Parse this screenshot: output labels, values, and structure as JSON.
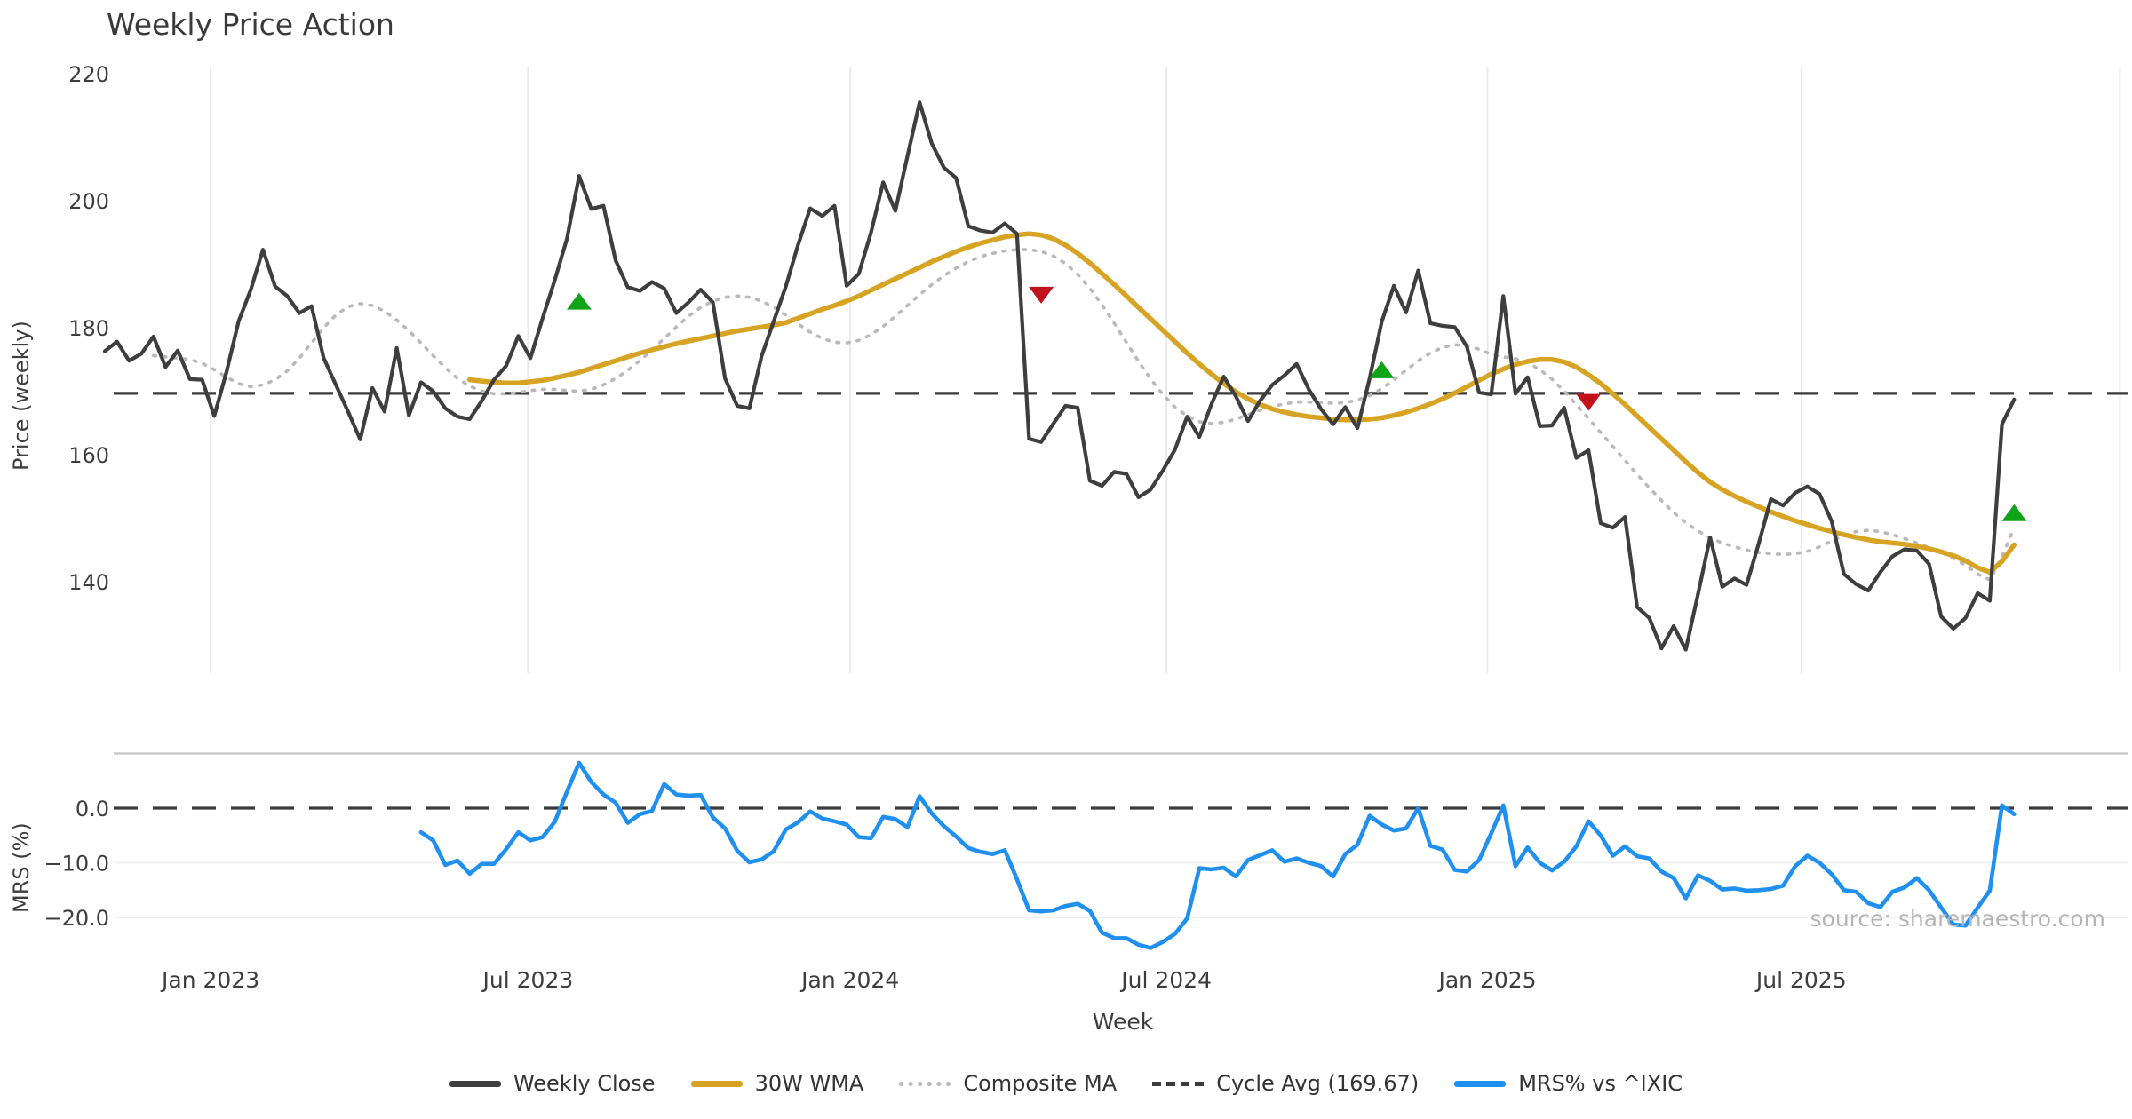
{
  "title": "Weekly Price Action",
  "source_note": "source: sharemaestro.com",
  "xlabel": "Week",
  "price_axis": {
    "label": "Price (weekly)",
    "ticks": [
      220,
      200,
      180,
      160,
      140
    ]
  },
  "mrs_axis": {
    "label": "MRS (%)",
    "ticks": [
      {
        "value": 0,
        "label": "0.0"
      },
      {
        "value": -10,
        "label": "−10.0"
      },
      {
        "value": -20,
        "label": "−20.0"
      }
    ]
  },
  "x_ticks": [
    {
      "week": 8.7,
      "label": "Jan 2023"
    },
    {
      "week": 34.8,
      "label": "Jul 2023"
    },
    {
      "week": 61.3,
      "label": "Jan 2024"
    },
    {
      "week": 87.3,
      "label": "Jul 2024"
    },
    {
      "week": 113.7,
      "label": "Jan 2025"
    },
    {
      "week": 139.5,
      "label": "Jul 2025"
    },
    {
      "week": 165.7,
      "label": ""
    }
  ],
  "colors": {
    "close": "#3e3e3e",
    "wma": "#d7a322",
    "composite": "#b9b9b9",
    "cycle": "#3b3b3b",
    "mrs": "#2090f0",
    "buy": "#0fa318",
    "sell": "#c2131c",
    "grid_v": "#eaeaea",
    "grid_h": "#f0f0f0",
    "panel_border": "#cbcbcb",
    "tick_text": "#3d3d3d"
  },
  "legend": [
    {
      "label": "Weekly Close",
      "swatch": "solid",
      "color": "#3e3e3e"
    },
    {
      "label": "30W WMA",
      "swatch": "solid",
      "color": "#d7a322"
    },
    {
      "label": "Composite MA",
      "swatch": "dotted",
      "color": "#b9b9b9"
    },
    {
      "label": "Cycle Avg (169.67)",
      "swatch": "dashed",
      "color": "#3b3b3b"
    },
    {
      "label": "MRS% vs ^IXIC",
      "swatch": "solid",
      "color": "#2090f0"
    }
  ],
  "chart_data": [
    {
      "type": "line",
      "title": "Weekly Price Action",
      "xlabel": "Week",
      "ylabel": "Price (weekly)",
      "ylim": [
        126,
        222
      ],
      "grid": "vertical",
      "cycle_avg": 169.67,
      "series": [
        {
          "name": "Weekly Close",
          "start_week": 0,
          "values": [
            176.3,
            177.8,
            174.8,
            175.9,
            178.6,
            173.8,
            176.4,
            171.9,
            171.8,
            166.1,
            173.0,
            181.0,
            186.0,
            192.3,
            186.5,
            185.0,
            182.3,
            183.4,
            175.2,
            171.0,
            166.8,
            162.4,
            170.5,
            166.8,
            176.8,
            166.2,
            171.4,
            170.0,
            167.3,
            166.0,
            165.6,
            168.5,
            171.8,
            174.0,
            178.7,
            175.2,
            181.5,
            187.5,
            194.0,
            203.9,
            198.7,
            199.2,
            190.6,
            186.4,
            185.8,
            187.2,
            186.2,
            182.3,
            184.0,
            186.0,
            184.0,
            172.0,
            167.7,
            167.3,
            175.5,
            181.0,
            186.5,
            193.0,
            198.8,
            197.6,
            199.2,
            186.6,
            188.5,
            195.0,
            202.9,
            198.4,
            207.0,
            215.5,
            209.0,
            205.2,
            203.6,
            196.0,
            195.3,
            195.0,
            196.4,
            194.8,
            162.5,
            162.0,
            164.9,
            167.7,
            167.4,
            155.9,
            155.1,
            157.3,
            157.0,
            153.3,
            154.5,
            157.5,
            160.8,
            166.0,
            162.8,
            168.0,
            172.3,
            169.2,
            165.3,
            168.5,
            171.0,
            172.5,
            174.3,
            170.3,
            167.2,
            164.8,
            167.5,
            164.2,
            172.0,
            181.0,
            186.6,
            182.4,
            189.0,
            180.7,
            180.3,
            180.1,
            177.0,
            169.8,
            169.5,
            185.0,
            169.6,
            172.2,
            164.5,
            164.6,
            167.4,
            159.5,
            160.7,
            149.2,
            148.5,
            150.2,
            136.0,
            134.3,
            129.5,
            133.0,
            129.3,
            138.0,
            147.0,
            139.2,
            140.5,
            139.5,
            146.0,
            153.0,
            152.0,
            154.0,
            155.0,
            153.8,
            149.5,
            141.2,
            139.6,
            138.6,
            141.5,
            144.0,
            145.1,
            144.9,
            142.8,
            134.5,
            132.6,
            134.3,
            138.2,
            137.0,
            164.8,
            168.7
          ]
        },
        {
          "name": "30W WMA",
          "start_week": 30,
          "values": [
            171.8,
            171.6,
            171.4,
            171.3,
            171.3,
            171.5,
            171.7,
            172.1,
            172.5,
            173.0,
            173.6,
            174.2,
            174.8,
            175.4,
            176.0,
            176.5,
            177.0,
            177.5,
            177.9,
            178.3,
            178.7,
            179.1,
            179.5,
            179.8,
            180.1,
            180.4,
            180.8,
            181.5,
            182.2,
            182.9,
            183.5,
            184.2,
            185.0,
            185.9,
            186.8,
            187.7,
            188.6,
            189.5,
            190.4,
            191.2,
            192.0,
            192.7,
            193.3,
            193.8,
            194.3,
            194.6,
            194.8,
            194.6,
            194.0,
            193.0,
            191.7,
            190.2,
            188.5,
            186.8,
            185.0,
            183.2,
            181.4,
            179.6,
            177.8,
            176.0,
            174.3,
            172.7,
            171.2,
            169.9,
            168.8,
            167.9,
            167.2,
            166.7,
            166.3,
            166.0,
            165.8,
            165.6,
            165.5,
            165.5,
            165.6,
            165.8,
            166.2,
            166.7,
            167.3,
            168.0,
            168.8,
            169.7,
            170.7,
            171.7,
            172.7,
            173.5,
            174.2,
            174.7,
            175.0,
            175.0,
            174.6,
            173.8,
            172.6,
            171.2,
            169.6,
            167.9,
            166.1,
            164.3,
            162.5,
            160.7,
            158.9,
            157.2,
            155.7,
            154.5,
            153.5,
            152.6,
            151.8,
            151.0,
            150.3,
            149.6,
            149.0,
            148.4,
            147.9,
            147.4,
            147.0,
            146.6,
            146.3,
            146.1,
            145.9,
            145.6,
            145.2,
            144.7,
            144.1,
            143.3,
            142.2,
            141.5,
            143.2,
            145.8
          ]
        },
        {
          "name": "Composite MA",
          "start_week": 4,
          "values": [
            175.6,
            175.4,
            175.2,
            175.0,
            174.4,
            173.4,
            172.2,
            171.2,
            170.7,
            171.0,
            171.8,
            173.2,
            175.2,
            177.6,
            180.0,
            182.0,
            183.3,
            183.8,
            183.5,
            182.6,
            181.2,
            179.5,
            177.6,
            175.6,
            173.7,
            172.0,
            170.8,
            170.0,
            169.6,
            169.6,
            169.8,
            170.1,
            170.3,
            170.3,
            170.1,
            170.0,
            170.3,
            171.0,
            172.0,
            173.3,
            174.8,
            176.5,
            178.3,
            180.1,
            181.8,
            183.2,
            184.2,
            184.8,
            185.0,
            184.8,
            184.2,
            183.2,
            182.0,
            180.6,
            179.3,
            178.3,
            177.7,
            177.6,
            178.0,
            178.9,
            180.2,
            181.8,
            183.5,
            185.2,
            186.8,
            188.2,
            189.4,
            190.4,
            191.2,
            191.7,
            192.1,
            192.3,
            192.3,
            192.0,
            191.3,
            190.1,
            188.4,
            186.2,
            183.6,
            180.7,
            177.7,
            174.7,
            171.9,
            169.5,
            167.5,
            166.1,
            165.2,
            164.9,
            165.1,
            165.6,
            166.3,
            167.0,
            167.6,
            168.0,
            168.3,
            168.3,
            168.2,
            168.1,
            168.2,
            168.6,
            169.3,
            170.4,
            171.8,
            173.3,
            174.8,
            176.0,
            176.9,
            177.3,
            177.2,
            176.6,
            175.8,
            175.4,
            175.1,
            174.5,
            173.4,
            171.9,
            170.0,
            167.9,
            165.7,
            163.5,
            161.3,
            159.1,
            156.9,
            154.8,
            152.8,
            150.9,
            149.3,
            148.0,
            146.9,
            146.1,
            145.5,
            145.0,
            144.6,
            144.4,
            144.3,
            144.4,
            144.8,
            145.5,
            146.4,
            147.3,
            147.9,
            148.1,
            147.9,
            147.4,
            146.8,
            146.1,
            145.4,
            144.6,
            143.7,
            142.6,
            141.2,
            140.3,
            144.0,
            148.5
          ]
        }
      ],
      "markers": {
        "buy_signals": [
          {
            "week": 39,
            "price": 184.1
          },
          {
            "week": 105,
            "price": 173.3
          },
          {
            "week": 157,
            "price": 150.8
          }
        ],
        "sell_signals": [
          {
            "week": 77,
            "price": 185.2
          },
          {
            "week": 122,
            "price": 168.3
          }
        ]
      }
    },
    {
      "type": "line",
      "ylabel": "MRS (%)",
      "ylim": [
        -27,
        10
      ],
      "grid": "horizontal",
      "zero_line": 0,
      "series": [
        {
          "name": "MRS% vs ^IXIC",
          "start_week": 26,
          "values": [
            -4.4,
            -5.9,
            -10.4,
            -9.6,
            -12.0,
            -10.2,
            -10.2,
            -7.5,
            -4.4,
            -5.9,
            -5.3,
            -2.5,
            3.0,
            8.3,
            4.8,
            2.5,
            1.0,
            -2.7,
            -1.1,
            -0.5,
            4.4,
            2.5,
            2.3,
            2.4,
            -1.7,
            -3.7,
            -7.8,
            -9.9,
            -9.4,
            -7.9,
            -3.9,
            -2.6,
            -0.6,
            -1.9,
            -2.4,
            -3.0,
            -5.3,
            -5.5,
            -1.6,
            -2.0,
            -3.5,
            2.2,
            -1.0,
            -3.3,
            -5.2,
            -7.3,
            -8.0,
            -8.4,
            -7.7,
            -13.0,
            -18.7,
            -18.9,
            -18.7,
            -17.9,
            -17.5,
            -18.8,
            -22.8,
            -23.8,
            -23.8,
            -25.0,
            -25.6,
            -24.5,
            -23.0,
            -20.2,
            -11.0,
            -11.2,
            -10.9,
            -12.5,
            -9.5,
            -8.6,
            -7.7,
            -9.8,
            -9.2,
            -10.0,
            -10.6,
            -12.5,
            -8.4,
            -6.7,
            -1.4,
            -3.0,
            -4.1,
            -3.7,
            0.0,
            -6.9,
            -7.6,
            -11.3,
            -11.6,
            -9.5,
            -4.6,
            0.5,
            -10.6,
            -7.2,
            -10.0,
            -11.4,
            -9.8,
            -7.0,
            -2.4,
            -5.0,
            -8.7,
            -7.0,
            -8.8,
            -9.2,
            -11.6,
            -12.8,
            -16.5,
            -12.3,
            -13.3,
            -14.9,
            -14.7,
            -15.1,
            -15.0,
            -14.8,
            -14.2,
            -10.6,
            -8.7,
            -10.0,
            -12.1,
            -15.0,
            -15.3,
            -17.4,
            -18.1,
            -15.3,
            -14.5,
            -12.8,
            -15.0,
            -18.2,
            -21.3,
            -21.5,
            -18.2,
            -15.1,
            0.5,
            -1.1
          ]
        }
      ]
    }
  ]
}
